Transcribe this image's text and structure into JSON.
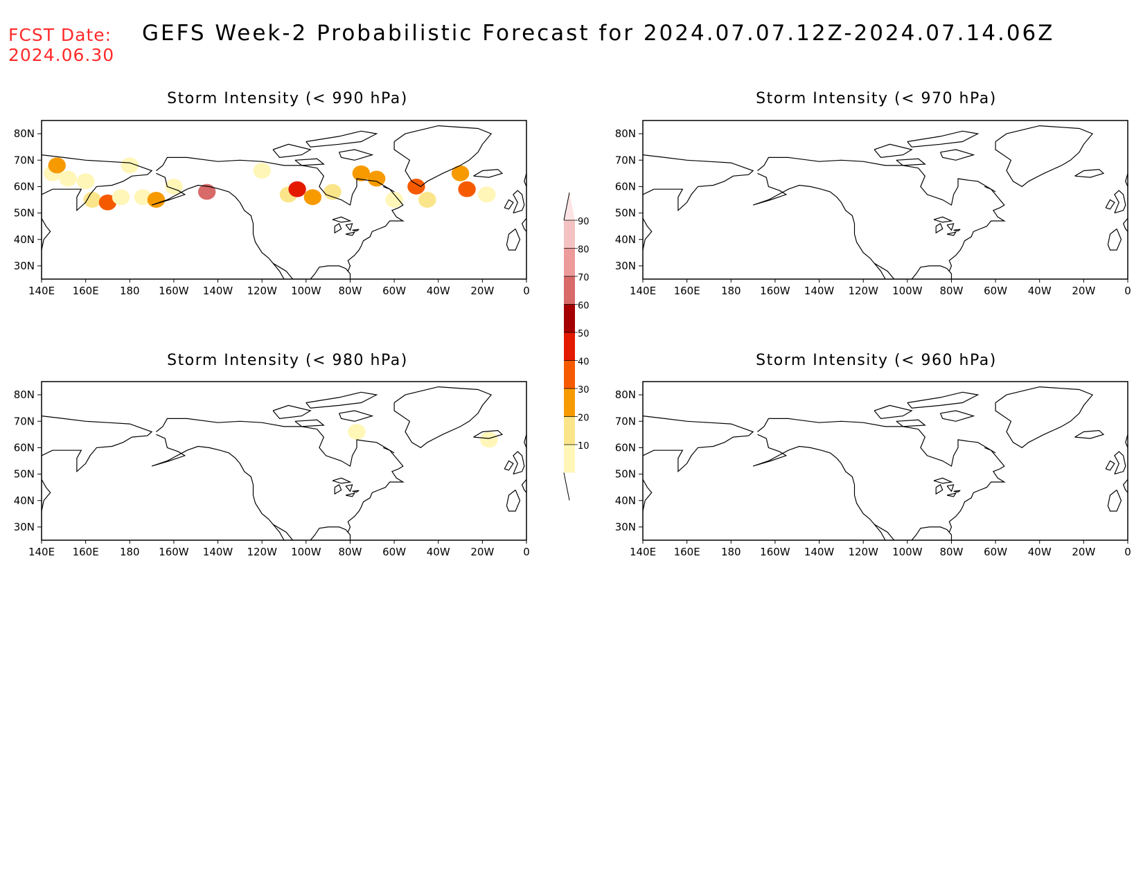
{
  "header": {
    "fcst_label": "FCST Date:",
    "fcst_date": "2024.06.30",
    "title": "GEFS Week-2 Probabilistic Forecast for 2024.07.07.12Z-2024.07.14.06Z"
  },
  "axes": {
    "lon_labels": [
      "140E",
      "160E",
      "180",
      "160W",
      "140W",
      "120W",
      "100W",
      "80W",
      "60W",
      "40W",
      "20W",
      "0"
    ],
    "lat_labels": [
      "80N",
      "70N",
      "60N",
      "50N",
      "40N",
      "30N"
    ],
    "lon_range": [
      140,
      360
    ],
    "lat_range": [
      25,
      85
    ]
  },
  "panels": [
    {
      "id": "p990",
      "title": "Storm Intensity (< 990 hPa)"
    },
    {
      "id": "p970",
      "title": "Storm Intensity (< 970 hPa)"
    },
    {
      "id": "p980",
      "title": "Storm Intensity (< 980 hPa)"
    },
    {
      "id": "p960",
      "title": "Storm Intensity (< 960 hPa)"
    }
  ],
  "colorbar": {
    "labels": [
      "90",
      "80",
      "70",
      "60",
      "50",
      "40",
      "30",
      "20",
      "10"
    ],
    "colors": [
      "#f4c2c2",
      "#ec9a9a",
      "#d96a6a",
      "#a50000",
      "#e31a00",
      "#f65a00",
      "#f79a00",
      "#fbe58a",
      "#fff6b8"
    ]
  },
  "chart_data": {
    "type": "heatmap",
    "units": "%",
    "levels": [
      10,
      20,
      30,
      40,
      50,
      60,
      70,
      80,
      90
    ],
    "panels": [
      {
        "title": "Storm Intensity (< 990 hPa)",
        "cells": [
          {
            "lon": 145,
            "lat": 65,
            "value": 15
          },
          {
            "lon": 147,
            "lat": 68,
            "value": 35
          },
          {
            "lon": 152,
            "lat": 63,
            "value": 15
          },
          {
            "lon": 160,
            "lat": 62,
            "value": 15
          },
          {
            "lon": 163,
            "lat": 55,
            "value": 25
          },
          {
            "lon": 170,
            "lat": 54,
            "value": 45
          },
          {
            "lon": 176,
            "lat": 56,
            "value": 15
          },
          {
            "lon": 180,
            "lat": 68,
            "value": 15
          },
          {
            "lon": 186,
            "lat": 56,
            "value": 15
          },
          {
            "lon": 192,
            "lat": 55,
            "value": 35
          },
          {
            "lon": 200,
            "lat": 60,
            "value": 15
          },
          {
            "lon": 215,
            "lat": 58,
            "value": 75
          },
          {
            "lon": 240,
            "lat": 66,
            "value": 15
          },
          {
            "lon": 252,
            "lat": 57,
            "value": 25
          },
          {
            "lon": 256,
            "lat": 59,
            "value": 55
          },
          {
            "lon": 263,
            "lat": 56,
            "value": 35
          },
          {
            "lon": 272,
            "lat": 58,
            "value": 25
          },
          {
            "lon": 285,
            "lat": 65,
            "value": 35
          },
          {
            "lon": 292,
            "lat": 63,
            "value": 35
          },
          {
            "lon": 300,
            "lat": 55,
            "value": 15
          },
          {
            "lon": 310,
            "lat": 60,
            "value": 45
          },
          {
            "lon": 315,
            "lat": 55,
            "value": 25
          },
          {
            "lon": 330,
            "lat": 65,
            "value": 35
          },
          {
            "lon": 333,
            "lat": 59,
            "value": 45
          },
          {
            "lon": 342,
            "lat": 57,
            "value": 15
          }
        ]
      },
      {
        "title": "Storm Intensity (< 970 hPa)",
        "cells": []
      },
      {
        "title": "Storm Intensity (< 980 hPa)",
        "cells": [
          {
            "lon": 283,
            "lat": 66,
            "value": 15
          },
          {
            "lon": 343,
            "lat": 63,
            "value": 15
          }
        ]
      },
      {
        "title": "Storm Intensity (< 960 hPa)",
        "cells": []
      }
    ]
  }
}
